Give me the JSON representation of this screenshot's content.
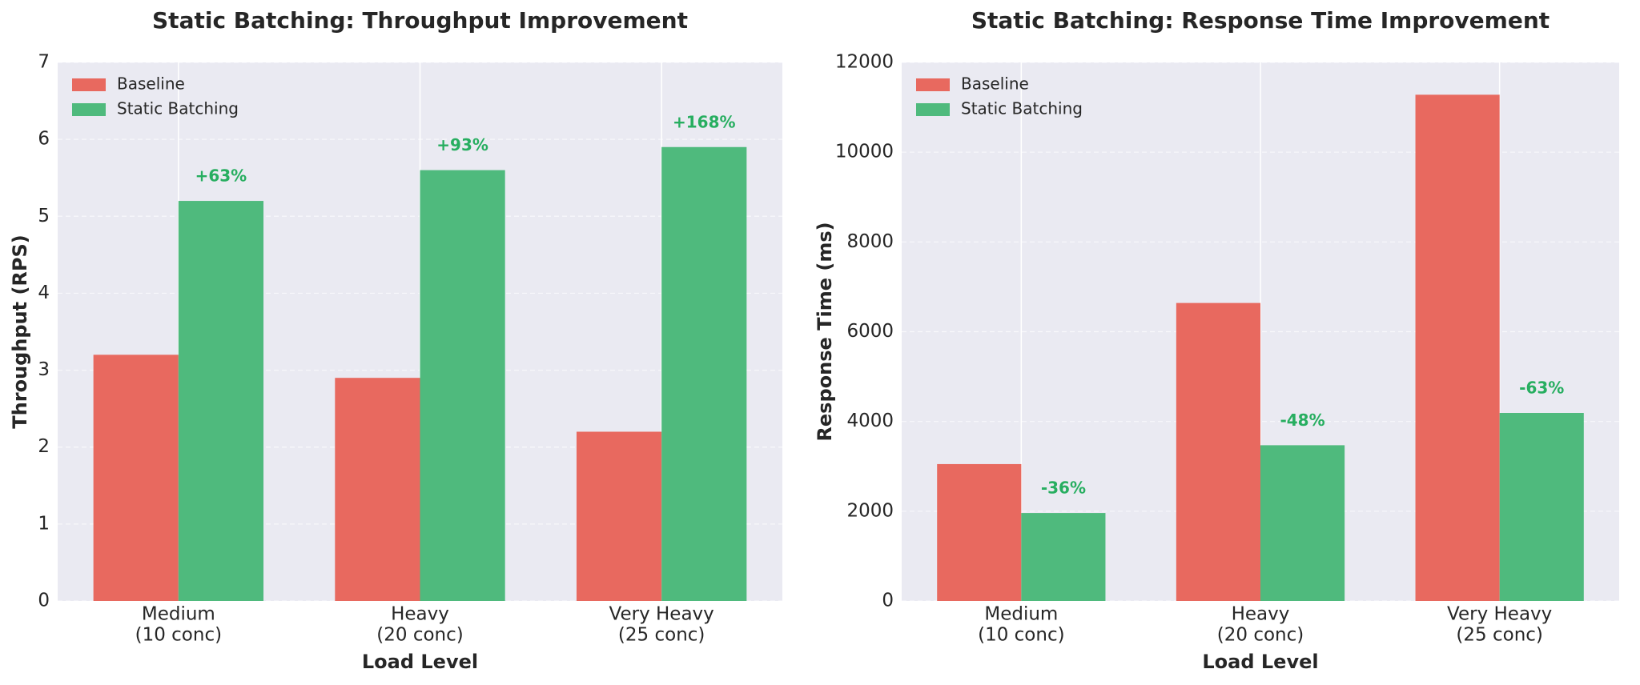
{
  "chart_data": [
    {
      "type": "bar",
      "title": "Static Batching: Throughput Improvement",
      "x_label": "Load Level",
      "y_label": "Throughput (RPS)",
      "categories": [
        [
          "Medium",
          "(10 conc)"
        ],
        [
          "Heavy",
          "(20 conc)"
        ],
        [
          "Very Heavy",
          "(25 conc)"
        ]
      ],
      "series": [
        {
          "name": "Baseline",
          "color": "#e8695f",
          "values": [
            3.2,
            2.9,
            2.2
          ]
        },
        {
          "name": "Static Batching",
          "color": "#4fba7d",
          "values": [
            5.2,
            5.6,
            5.9
          ]
        }
      ],
      "annotations": [
        "+63%",
        "+93%",
        "+168%"
      ],
      "annotation_color": "#27ae60",
      "ylim": [
        0,
        7
      ],
      "yticks": [
        0,
        1,
        2,
        3,
        4,
        5,
        6,
        7
      ],
      "grid": true,
      "legend": "upper-left"
    },
    {
      "type": "bar",
      "title": "Static Batching: Response Time Improvement",
      "x_label": "Load Level",
      "y_label": "Response Time (ms)",
      "categories": [
        [
          "Medium",
          "(10 conc)"
        ],
        [
          "Heavy",
          "(20 conc)"
        ],
        [
          "Very Heavy",
          "(25 conc)"
        ]
      ],
      "series": [
        {
          "name": "Baseline",
          "color": "#e8695f",
          "values": [
            3050,
            6640,
            11280
          ]
        },
        {
          "name": "Static Batching",
          "color": "#4fba7d",
          "values": [
            1960,
            3470,
            4190
          ]
        }
      ],
      "annotations": [
        "-36%",
        "-48%",
        "-63%"
      ],
      "annotation_color": "#27ae60",
      "ylim": [
        0,
        12000
      ],
      "yticks": [
        0,
        2000,
        4000,
        6000,
        8000,
        10000,
        12000
      ],
      "grid": true,
      "legend": "upper-left"
    }
  ]
}
